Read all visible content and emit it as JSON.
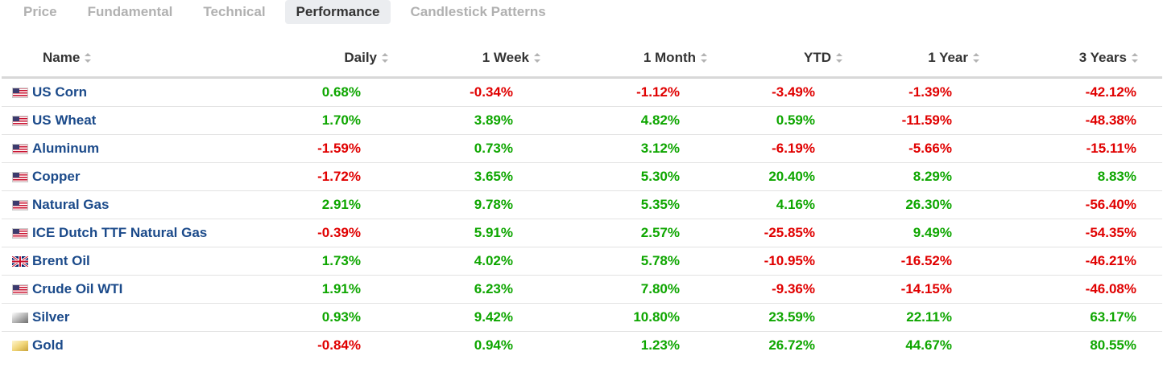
{
  "tabs": [
    {
      "label": "Price",
      "active": false
    },
    {
      "label": "Fundamental",
      "active": false
    },
    {
      "label": "Technical",
      "active": false
    },
    {
      "label": "Performance",
      "active": true
    },
    {
      "label": "Candlestick Patterns",
      "active": false
    }
  ],
  "columns": {
    "name": "Name",
    "daily": "Daily",
    "week": "1 Week",
    "month": "1 Month",
    "ytd": "YTD",
    "year": "1 Year",
    "three_years": "3 Years"
  },
  "colors": {
    "positive": "#0ea600",
    "negative": "#e00000",
    "link": "#1b4a8a"
  },
  "rows": [
    {
      "flag": "us-flag-icon",
      "name": "US Corn",
      "daily": "0.68%",
      "week": "-0.34%",
      "month": "-1.12%",
      "ytd": "-3.49%",
      "year": "-1.39%",
      "three_years": "-42.12%"
    },
    {
      "flag": "us-flag-icon",
      "name": "US Wheat",
      "daily": "1.70%",
      "week": "3.89%",
      "month": "4.82%",
      "ytd": "0.59%",
      "year": "-11.59%",
      "three_years": "-48.38%"
    },
    {
      "flag": "us-flag-icon",
      "name": "Aluminum",
      "daily": "-1.59%",
      "week": "0.73%",
      "month": "3.12%",
      "ytd": "-6.19%",
      "year": "-5.66%",
      "three_years": "-15.11%"
    },
    {
      "flag": "us-flag-icon",
      "name": "Copper",
      "daily": "-1.72%",
      "week": "3.65%",
      "month": "5.30%",
      "ytd": "20.40%",
      "year": "8.29%",
      "three_years": "8.83%"
    },
    {
      "flag": "us-flag-icon",
      "name": "Natural Gas",
      "daily": "2.91%",
      "week": "9.78%",
      "month": "5.35%",
      "ytd": "4.16%",
      "year": "26.30%",
      "three_years": "-56.40%"
    },
    {
      "flag": "us-flag-icon",
      "name": "ICE Dutch TTF Natural Gas",
      "daily": "-0.39%",
      "week": "5.91%",
      "month": "2.57%",
      "ytd": "-25.85%",
      "year": "9.49%",
      "three_years": "-54.35%"
    },
    {
      "flag": "uk-flag-icon",
      "name": "Brent Oil",
      "daily": "1.73%",
      "week": "4.02%",
      "month": "5.78%",
      "ytd": "-10.95%",
      "year": "-16.52%",
      "three_years": "-46.21%"
    },
    {
      "flag": "us-flag-icon",
      "name": "Crude Oil WTI",
      "daily": "1.91%",
      "week": "6.23%",
      "month": "7.80%",
      "ytd": "-9.36%",
      "year": "-14.15%",
      "three_years": "-46.08%"
    },
    {
      "flag": "silver-swatch-icon",
      "name": "Silver",
      "daily": "0.93%",
      "week": "9.42%",
      "month": "10.80%",
      "ytd": "23.59%",
      "year": "22.11%",
      "three_years": "63.17%"
    },
    {
      "flag": "gold-swatch-icon",
      "name": "Gold",
      "daily": "-0.84%",
      "week": "0.94%",
      "month": "1.23%",
      "ytd": "26.72%",
      "year": "44.67%",
      "three_years": "80.55%"
    }
  ]
}
